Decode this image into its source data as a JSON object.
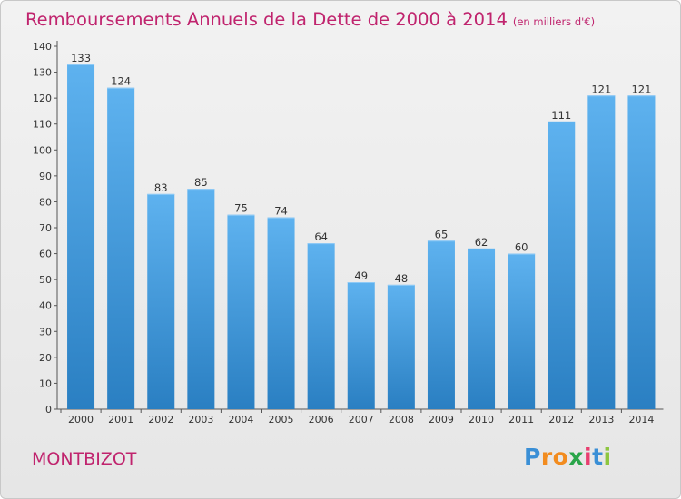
{
  "title": "Remboursements Annuels de la Dette de 2000 à 2014",
  "subtitle": "(en milliers d'€)",
  "city": "MONTBIZOT",
  "logo": [
    "P",
    "r",
    "o",
    "x",
    "i",
    "t",
    "i"
  ],
  "colors": {
    "title": "#c0246e",
    "bar_top": "#5eb2ef",
    "bar_bottom": "#2a7fc2",
    "logo": [
      "#3a8fd6",
      "#f28c1f",
      "#f28c1f",
      "#2aa54a",
      "#e83d6f",
      "#3a8fd6",
      "#8dc63f"
    ]
  },
  "chart_data": {
    "type": "bar",
    "categories": [
      "2000",
      "2001",
      "2002",
      "2003",
      "2004",
      "2005",
      "2006",
      "2007",
      "2008",
      "2009",
      "2010",
      "2011",
      "2012",
      "2013",
      "2014"
    ],
    "values": [
      133,
      124,
      83,
      85,
      75,
      74,
      64,
      49,
      48,
      65,
      62,
      60,
      111,
      121,
      121
    ],
    "ylim": [
      0,
      140
    ],
    "yticks": [
      0,
      10,
      20,
      30,
      40,
      50,
      60,
      70,
      80,
      90,
      100,
      110,
      120,
      130,
      140
    ],
    "grid": false,
    "data_labels": true
  }
}
